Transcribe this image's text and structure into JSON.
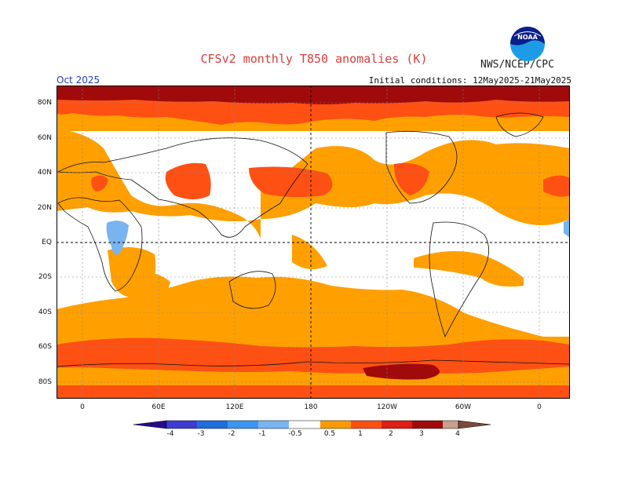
{
  "title": "CFSv2 monthly T850 anomalies (K)",
  "agency": "NWS/NCEP/CPC",
  "logo_text": "NOAA",
  "forecast_month": "Oct 2025",
  "initial_conditions": "Initial conditions: 12May2025-21May2025",
  "lat_labels": [
    "80N",
    "60N",
    "40N",
    "20N",
    "EQ",
    "20S",
    "40S",
    "60S",
    "80S"
  ],
  "lon_labels": [
    "0",
    "60E",
    "120E",
    "180",
    "120W",
    "60W",
    "0"
  ],
  "colorbar": {
    "labels": [
      "-4",
      "-3",
      "-2",
      "-1",
      "-0.5",
      "0.5",
      "1",
      "2",
      "3",
      "4"
    ],
    "colors": {
      "below_-4": "#2a0a8c",
      "-4_-3": "#3c3cd2",
      "-3_-2": "#1e6edc",
      "-2_-1": "#3c96f0",
      "-1_-0.5": "#78b4f0",
      "-0.5_0.5": "#ffffff",
      "0.5_1": "#ff9a00",
      "1_2": "#ff5014",
      "2_3": "#e01e14",
      "3_4": "#a00a0a",
      "4_5": "#c8a08c",
      "above_5": "#7a4a3a"
    }
  },
  "colors": {
    "title": "#e03c3c",
    "period": "#1f3fbf",
    "weak_warm": "#ffa000",
    "moderate_warm": "#ff5014",
    "strong_warm": "#a00a0a",
    "weak_cold": "#78b4f0"
  }
}
